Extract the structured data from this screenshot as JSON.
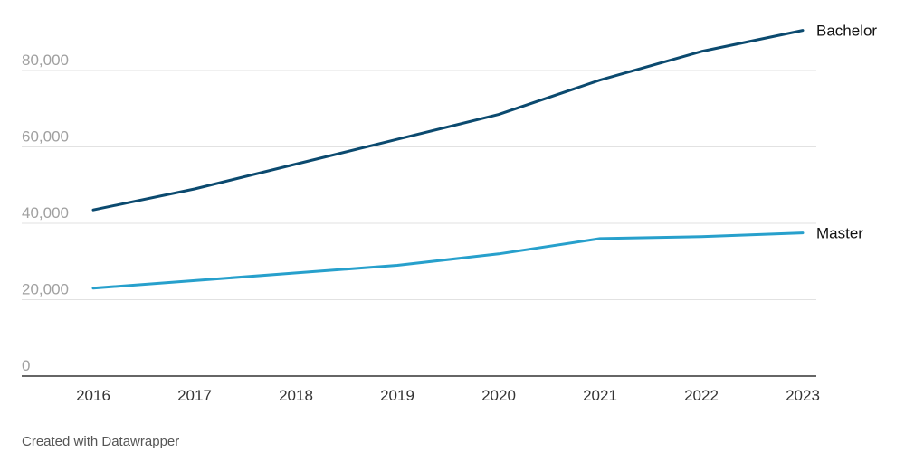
{
  "chart_data": {
    "type": "line",
    "title": "",
    "xlabel": "",
    "ylabel": "",
    "x": [
      "2016",
      "2017",
      "2018",
      "2019",
      "2020",
      "2021",
      "2022",
      "2023"
    ],
    "ylim": [
      0,
      90000
    ],
    "yticks": [
      0,
      20000,
      40000,
      60000,
      80000
    ],
    "ytick_labels": [
      "0",
      "20,000",
      "40,000",
      "60,000",
      "80,000"
    ],
    "grid": true,
    "legend": "inline-right",
    "series": [
      {
        "name": "Bachelor",
        "color": "#0b4a6f",
        "values": [
          43500,
          49000,
          55500,
          62000,
          68500,
          77500,
          85000,
          90500
        ]
      },
      {
        "name": "Master",
        "color": "#27a0cc",
        "values": [
          23000,
          25000,
          27000,
          29000,
          32000,
          36000,
          36500,
          37500
        ]
      }
    ]
  },
  "footer": {
    "credit": "Created with Datawrapper"
  }
}
